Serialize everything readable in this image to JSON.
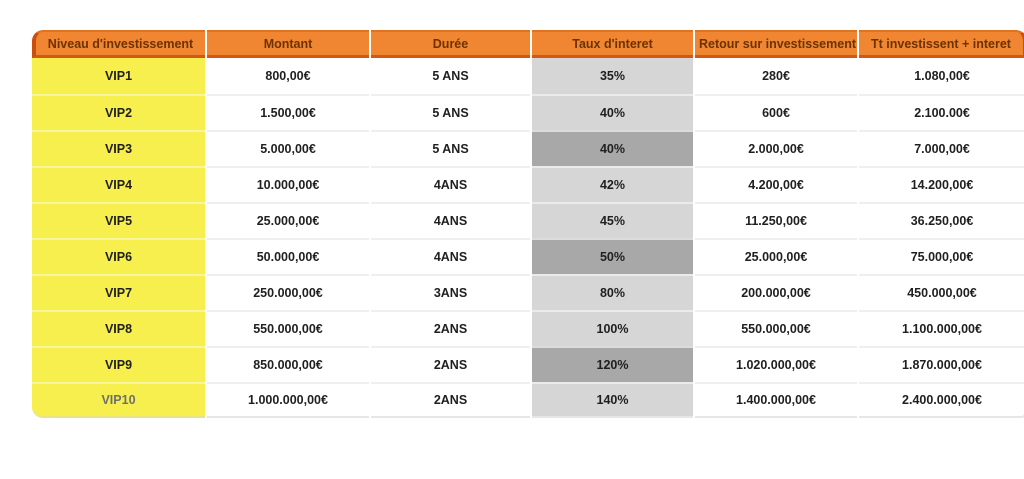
{
  "chart_data": {
    "type": "table",
    "columns": [
      "Niveau d'investissement",
      "Montant",
      "Durée",
      "Taux d'interet",
      "Retour sur investissement",
      "Tt investissent + interet"
    ],
    "column_keys": [
      "niveau",
      "montant",
      "duree",
      "taux",
      "retour",
      "total"
    ],
    "rows": [
      {
        "niveau": "VIP1",
        "montant": "800,00€",
        "duree": "5 ANS",
        "taux": "35%",
        "retour": "280€",
        "total": "1.080,00€",
        "taux_dark": false,
        "niveau_muted": false
      },
      {
        "niveau": "VIP2",
        "montant": "1.500,00€",
        "duree": "5 ANS",
        "taux": "40%",
        "retour": "600€",
        "total": "2.100.00€",
        "taux_dark": false,
        "niveau_muted": false
      },
      {
        "niveau": "VIP3",
        "montant": "5.000,00€",
        "duree": "5 ANS",
        "taux": "40%",
        "retour": "2.000,00€",
        "total": "7.000,00€",
        "taux_dark": true,
        "niveau_muted": false
      },
      {
        "niveau": "VIP4",
        "montant": "10.000,00€",
        "duree": "4ANS",
        "taux": "42%",
        "retour": "4.200,00€",
        "total": "14.200,00€",
        "taux_dark": false,
        "niveau_muted": false
      },
      {
        "niveau": "VIP5",
        "montant": "25.000,00€",
        "duree": "4ANS",
        "taux": "45%",
        "retour": "11.250,00€",
        "total": "36.250,00€",
        "taux_dark": false,
        "niveau_muted": false
      },
      {
        "niveau": "VIP6",
        "montant": "50.000,00€",
        "duree": "4ANS",
        "taux": "50%",
        "retour": "25.000,00€",
        "total": "75.000,00€",
        "taux_dark": true,
        "niveau_muted": false
      },
      {
        "niveau": "VIP7",
        "montant": "250.000,00€",
        "duree": "3ANS",
        "taux": "80%",
        "retour": "200.000,00€",
        "total": "450.000,00€",
        "taux_dark": false,
        "niveau_muted": false
      },
      {
        "niveau": "VIP8",
        "montant": "550.000,00€",
        "duree": "2ANS",
        "taux": "100%",
        "retour": "550.000,00€",
        "total": "1.100.000,00€",
        "taux_dark": false,
        "niveau_muted": false
      },
      {
        "niveau": "VIP9",
        "montant": "850.000,00€",
        "duree": "2ANS",
        "taux": "120%",
        "retour": "1.020.000,00€",
        "total": "1.870.000,00€",
        "taux_dark": true,
        "niveau_muted": false
      },
      {
        "niveau": "VIP10",
        "montant": "1.000.000,00€",
        "duree": "2ANS",
        "taux": "140%",
        "retour": "1.400.000,00€",
        "total": "2.400.000,00€",
        "taux_dark": false,
        "niveau_muted": true
      }
    ],
    "layout": {
      "header_bg": "#F08632",
      "header_border": "#C8500E",
      "header_text": "#6D3200",
      "level_column_bg": "#F6EF4D",
      "rate_column_bg_light": "#D6D6D6",
      "rate_column_bg_dark": "#A8A8A8",
      "body_text": "#1f1f1f",
      "muted_text": "#6e6e6e",
      "grid": "off",
      "legend": "none"
    }
  }
}
